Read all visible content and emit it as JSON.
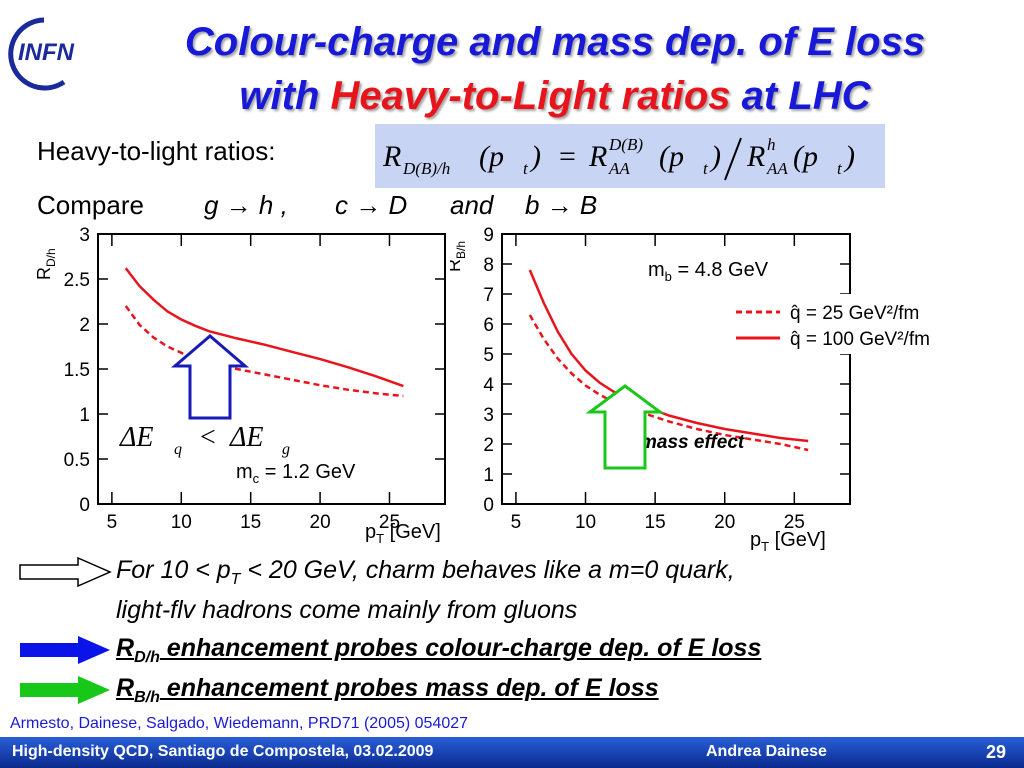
{
  "header": {
    "logo_text": "INFN",
    "title_line1": "Colour-charge and mass dep. of E loss",
    "title_line2_pre": "with ",
    "title_line2_red": "Heavy-to-Light ratios",
    "title_line2_post": " at LHC"
  },
  "intro": {
    "label": "Heavy-to-light ratios:",
    "compare_label": "Compare",
    "compare_items": [
      "g → h ,",
      "c → D",
      "and",
      "b → B"
    ]
  },
  "formula": {
    "lhs": "R",
    "lhs_sub": "D(B)/h",
    "arg": "(p",
    "arg_sub": "t",
    "close": ")",
    "eq": "=",
    "num": "R",
    "num_sup": "D(B)",
    "num_sub": "AA",
    "den": "R",
    "den_sup": "h",
    "den_sub": "AA"
  },
  "chart_data": [
    {
      "type": "line",
      "xlabel": "p",
      "xlabel_sub": "T",
      "xlabel_unit": " [GeV]",
      "ylabel": "R",
      "ylabel_sub": "D/h",
      "xlim": [
        4,
        29
      ],
      "ylim": [
        0,
        3
      ],
      "x_ticks": [
        5,
        10,
        15,
        20,
        25
      ],
      "y_ticks": [
        0,
        0.5,
        1,
        1.5,
        2,
        2.5,
        3
      ],
      "y_tick_labels": [
        "0",
        "0.5",
        "1",
        "1.5",
        "2",
        "2.5",
        "3"
      ],
      "annotation": "m",
      "annotation_sub": "c",
      "annotation_value": " = 1.2 GeV",
      "inequality": {
        "lhs": "ΔE",
        "lhs_sub": "q",
        "op": "<",
        "rhs": "ΔE",
        "rhs_sub": "g"
      },
      "series": [
        {
          "style": "solid",
          "color": "#e8141c",
          "x": [
            6,
            7,
            8,
            9,
            10,
            11,
            12,
            13,
            14,
            16,
            18,
            20,
            22,
            24,
            26
          ],
          "y": [
            2.62,
            2.42,
            2.27,
            2.14,
            2.05,
            1.98,
            1.92,
            1.88,
            1.84,
            1.77,
            1.69,
            1.61,
            1.52,
            1.42,
            1.31
          ]
        },
        {
          "style": "dashed",
          "color": "#e8141c",
          "x": [
            6,
            7,
            8,
            9,
            10,
            11,
            12,
            14,
            16,
            18,
            20,
            22,
            24,
            26
          ],
          "y": [
            2.2,
            1.99,
            1.85,
            1.75,
            1.68,
            1.62,
            1.58,
            1.5,
            1.44,
            1.38,
            1.32,
            1.27,
            1.23,
            1.2
          ]
        }
      ]
    },
    {
      "type": "line",
      "xlabel": "p",
      "xlabel_sub": "T",
      "xlabel_unit": " [GeV]",
      "ylabel": "R",
      "ylabel_sub": "B/h",
      "xlim": [
        4,
        29
      ],
      "ylim": [
        0,
        9
      ],
      "x_ticks": [
        5,
        10,
        15,
        20,
        25
      ],
      "y_ticks": [
        0,
        1,
        2,
        3,
        4,
        5,
        6,
        7,
        8,
        9
      ],
      "y_tick_labels": [
        "0",
        "1",
        "2",
        "3",
        "4",
        "5",
        "6",
        "7",
        "8",
        "9"
      ],
      "annotation": "m",
      "annotation_sub": "b",
      "annotation_value": " = 4.8 GeV",
      "annotation2": "mass effect",
      "legend": [
        {
          "label": "q̂ = 25 GeV²/fm",
          "style": "dashed",
          "color": "#e8141c"
        },
        {
          "label": "q̂ = 100 GeV²/fm",
          "style": "solid",
          "color": "#e8141c"
        }
      ],
      "series": [
        {
          "style": "solid",
          "color": "#e8141c",
          "x": [
            6,
            7,
            8,
            9,
            10,
            11,
            12,
            13,
            14,
            16,
            18,
            20,
            22,
            24,
            26
          ],
          "y": [
            7.8,
            6.7,
            5.75,
            5.0,
            4.45,
            4.05,
            3.75,
            3.5,
            3.3,
            2.95,
            2.7,
            2.5,
            2.35,
            2.2,
            2.1
          ]
        },
        {
          "style": "dashed",
          "color": "#e8141c",
          "x": [
            6,
            7,
            8,
            9,
            10,
            11,
            12,
            13,
            14,
            16,
            18,
            20,
            22,
            24,
            26
          ],
          "y": [
            6.3,
            5.5,
            4.85,
            4.35,
            3.95,
            3.65,
            3.4,
            3.2,
            3.05,
            2.75,
            2.5,
            2.3,
            2.15,
            2.0,
            1.8
          ]
        }
      ]
    }
  ],
  "bullets": [
    {
      "arrow": "white-arrow",
      "line1_pre": "For 10 < p",
      "line1_sub": "T",
      "line1_post": " < 20 GeV, charm behaves like a m=0 quark,",
      "line2": "light-flv hadrons come mainly from gluons"
    },
    {
      "arrow": "blue-arrow",
      "label": "R",
      "label_sub": "D/h",
      "text": " enhancement probes colour-charge dep. of E loss"
    },
    {
      "arrow": "green-arrow",
      "label": "R",
      "label_sub": "B/h",
      "text": " enhancement probes mass dep. of E loss"
    }
  ],
  "reference": "Armesto, Dainese, Salgado, Wiedemann, PRD71 (2005) 054027",
  "footer": {
    "left": "High-density QCD, Santiago de Compostela, 03.02.2009",
    "author": "Andrea Dainese",
    "page": "29"
  },
  "colors": {
    "title": "#1818d8",
    "accent": "#e8141c",
    "footer": "#0b2a8e",
    "blue_arrow": "#0a14e8",
    "green_arrow": "#18c818"
  }
}
